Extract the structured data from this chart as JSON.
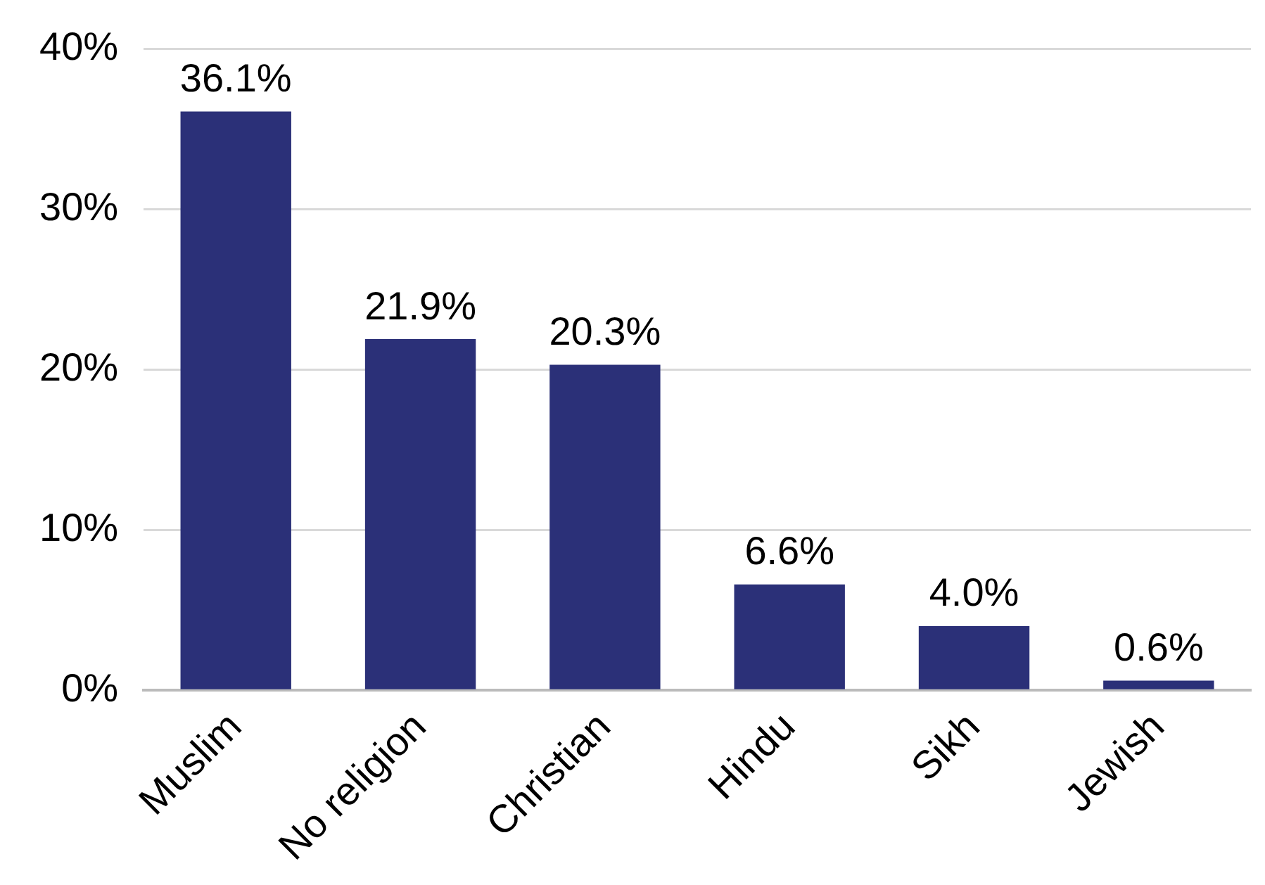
{
  "chart_data": {
    "type": "bar",
    "categories": [
      "Muslim",
      "No religion",
      "Christian",
      "Hindu",
      "Sikh",
      "Jewish"
    ],
    "values": [
      36.1,
      21.9,
      20.3,
      6.6,
      4.0,
      0.6
    ],
    "value_labels": [
      "36.1%",
      "21.9%",
      "20.3%",
      "6.6%",
      "4.0%",
      "0.6%"
    ],
    "color": "#2b3078",
    "ylim": [
      0,
      40
    ],
    "yticks": [
      {
        "value": 0,
        "label": "0%"
      },
      {
        "value": 10,
        "label": "10%"
      },
      {
        "value": 20,
        "label": "20%"
      },
      {
        "value": 30,
        "label": "30%"
      },
      {
        "value": 40,
        "label": "40%"
      }
    ],
    "grid": "y",
    "legend": false
  }
}
